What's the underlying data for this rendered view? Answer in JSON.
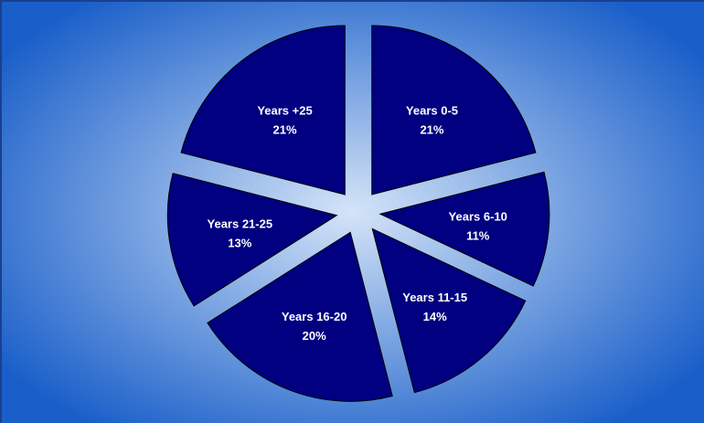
{
  "chart_data": {
    "type": "pie",
    "title": "",
    "exploded": true,
    "start_angle_deg": 0,
    "direction": "clockwise",
    "slice_color": "#000080",
    "label_color": "#ffffff",
    "background": {
      "center_color": "#d4e4f8",
      "edge_color": "#1a5fc9"
    },
    "slices": [
      {
        "label": "Years 0-5",
        "value": 21,
        "display": "21%"
      },
      {
        "label": "Years 6-10",
        "value": 11,
        "display": "11%"
      },
      {
        "label": "Years 11-15",
        "value": 14,
        "display": "14%"
      },
      {
        "label": "Years 16-20",
        "value": 20,
        "display": "20%"
      },
      {
        "label": "Years 21-25",
        "value": 13,
        "display": "13%"
      },
      {
        "label": "Years +25",
        "value": 21,
        "display": "21%"
      }
    ]
  }
}
